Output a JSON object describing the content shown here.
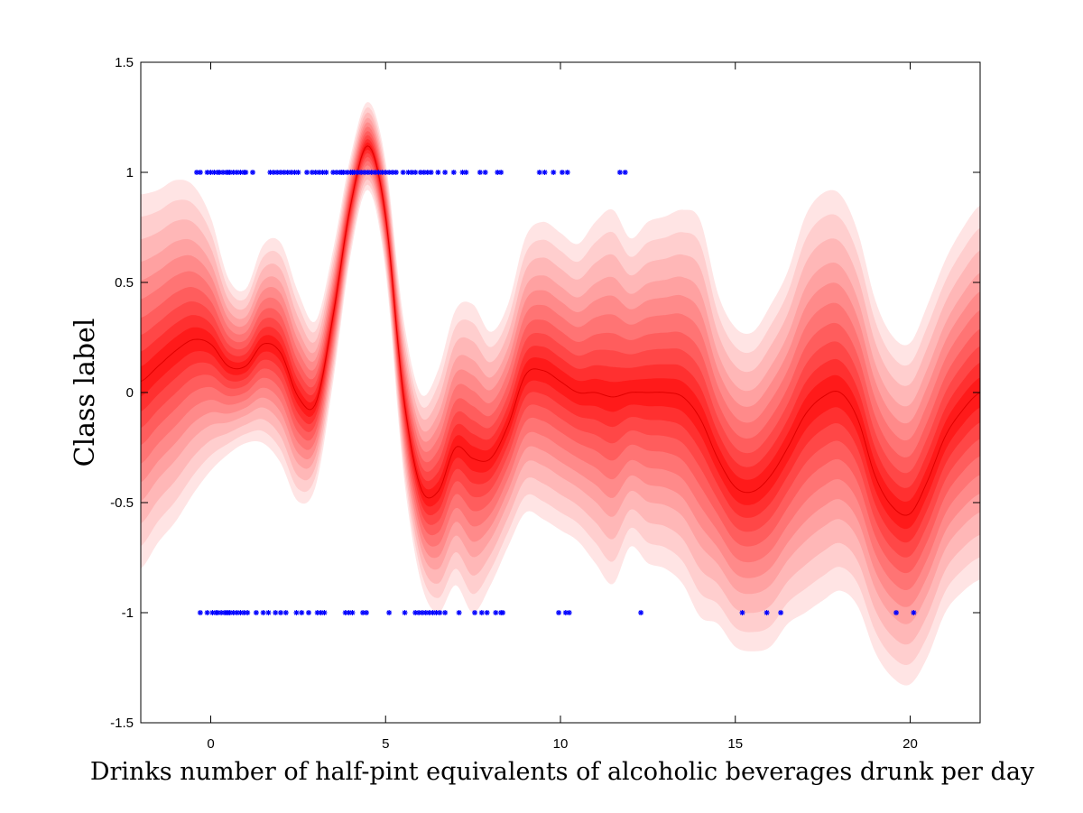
{
  "chart_data": {
    "type": "area",
    "xlabel": "Drinks number of half-pint equivalents of alcoholic beverages drunk per day",
    "ylabel": "Class label",
    "xlim": [
      -2,
      22
    ],
    "ylim": [
      -1.5,
      1.5
    ],
    "x_ticks": [
      0,
      5,
      10,
      15,
      20
    ],
    "x_tick_labels": [
      "0",
      "5",
      "10",
      "15",
      "20"
    ],
    "y_ticks": [
      -1.5,
      -1,
      -0.5,
      0,
      0.5,
      1,
      1.5
    ],
    "y_tick_labels": [
      "-1.5",
      "-1",
      "-0.5",
      "0",
      "0.5",
      "1",
      "1.5"
    ],
    "grid": false,
    "band_color": "#ff1a1a",
    "point_color": "#0000ff",
    "mean_curve": {
      "x": [
        -2,
        -1.5,
        -1,
        -0.5,
        0,
        0.5,
        1,
        1.5,
        2,
        2.5,
        3,
        3.5,
        4,
        4.5,
        5,
        5.5,
        6,
        6.5,
        7,
        7.5,
        8,
        8.5,
        9,
        9.5,
        10,
        10.5,
        11,
        11.5,
        12,
        12.5,
        13,
        13.5,
        14,
        14.5,
        15,
        15.5,
        16,
        16.5,
        17,
        17.5,
        18,
        18.5,
        19,
        19.5,
        20,
        20.5,
        21,
        21.5,
        22
      ],
      "y": [
        0.05,
        0.12,
        0.19,
        0.24,
        0.22,
        0.12,
        0.12,
        0.22,
        0.18,
        -0.02,
        -0.05,
        0.35,
        0.85,
        1.12,
        0.8,
        0.0,
        -0.43,
        -0.45,
        -0.25,
        -0.3,
        -0.3,
        -0.15,
        0.08,
        0.1,
        0.05,
        0.0,
        0.0,
        -0.02,
        0.0,
        0.0,
        0.0,
        -0.02,
        -0.12,
        -0.3,
        -0.43,
        -0.45,
        -0.38,
        -0.25,
        -0.1,
        -0.02,
        0.0,
        -0.12,
        -0.38,
        -0.52,
        -0.55,
        -0.4,
        -0.2,
        -0.08,
        0.0
      ]
    },
    "std_curve": {
      "x": [
        -2,
        -1.5,
        -1,
        -0.5,
        0,
        0.5,
        1,
        1.5,
        2,
        2.5,
        3,
        3.5,
        4,
        4.5,
        5,
        5.5,
        6,
        6.5,
        7,
        7.5,
        8,
        8.5,
        9,
        9.5,
        10,
        10.5,
        11,
        11.5,
        12,
        12.5,
        13,
        13.5,
        14,
        14.5,
        15,
        15.5,
        16,
        16.5,
        17,
        17.5,
        18,
        18.5,
        19,
        19.5,
        20,
        20.5,
        21,
        21.5,
        22
      ],
      "y": [
        0.34,
        0.32,
        0.31,
        0.28,
        0.23,
        0.16,
        0.14,
        0.18,
        0.2,
        0.19,
        0.15,
        0.12,
        0.09,
        0.08,
        0.1,
        0.14,
        0.17,
        0.22,
        0.25,
        0.28,
        0.23,
        0.22,
        0.25,
        0.27,
        0.27,
        0.27,
        0.31,
        0.34,
        0.28,
        0.31,
        0.32,
        0.34,
        0.36,
        0.3,
        0.29,
        0.29,
        0.31,
        0.32,
        0.36,
        0.37,
        0.36,
        0.34,
        0.32,
        0.31,
        0.31,
        0.32,
        0.32,
        0.33,
        0.34
      ]
    },
    "band_levels": [
      2.5,
      2.2,
      1.9,
      1.6,
      1.35,
      1.1,
      0.85,
      0.62,
      0.4,
      0.2
    ],
    "points_class_1": [
      -0.4,
      -0.3,
      -0.1,
      0.0,
      0.1,
      0.2,
      0.25,
      0.35,
      0.45,
      0.5,
      0.55,
      0.65,
      0.75,
      0.85,
      0.95,
      1.0,
      1.2,
      1.7,
      1.8,
      1.9,
      2.0,
      2.1,
      2.2,
      2.3,
      2.4,
      2.5,
      2.75,
      2.9,
      3.0,
      3.1,
      3.2,
      3.3,
      3.5,
      3.6,
      3.7,
      3.75,
      3.8,
      3.9,
      4.0,
      4.05,
      4.1,
      4.2,
      4.3,
      4.4,
      4.5,
      4.6,
      4.7,
      4.8,
      4.9,
      5.0,
      5.1,
      5.2,
      5.3,
      5.5,
      5.65,
      5.75,
      5.85,
      6.0,
      6.1,
      6.2,
      6.3,
      6.5,
      6.7,
      6.95,
      7.2,
      7.3,
      7.7,
      7.85,
      8.2,
      8.3,
      9.4,
      9.55,
      9.8,
      10.05,
      10.2,
      11.7,
      11.85
    ],
    "points_class_neg1": [
      -0.3,
      -0.1,
      0.05,
      0.15,
      0.2,
      0.3,
      0.4,
      0.45,
      0.5,
      0.55,
      0.65,
      0.75,
      0.85,
      0.95,
      1.05,
      1.3,
      1.5,
      1.65,
      1.85,
      2.0,
      2.15,
      2.45,
      2.6,
      2.8,
      3.05,
      3.15,
      3.25,
      3.85,
      3.95,
      4.05,
      4.35,
      4.45,
      5.1,
      5.55,
      5.85,
      5.95,
      6.05,
      6.15,
      6.25,
      6.35,
      6.45,
      6.55,
      6.7,
      7.1,
      7.55,
      7.75,
      7.9,
      8.15,
      8.3,
      8.35,
      9.95,
      10.15,
      10.25,
      12.3,
      15.2,
      15.9,
      16.3,
      19.6,
      20.1
    ]
  }
}
